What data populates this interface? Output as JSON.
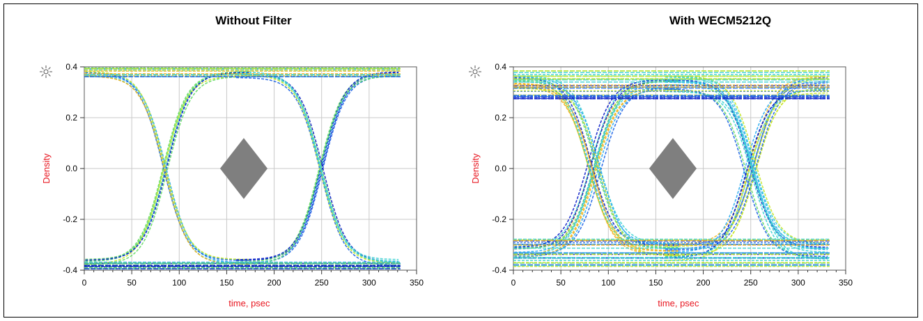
{
  "panels": [
    {
      "title": "Without Filter"
    },
    {
      "title": "With WECM5212Q"
    }
  ],
  "colors": {
    "axis_label": "#e8141e",
    "grid": "#c8c8c8",
    "mask": "#7f7f7f",
    "trace_palette": [
      "#0a1ec8",
      "#1e64e6",
      "#28aaf0",
      "#3cd2d2",
      "#64dc64",
      "#c8e628",
      "#f0b41e"
    ]
  },
  "chart_data": [
    {
      "type": "scatter",
      "title": "Without Filter",
      "xlabel": "time, psec",
      "ylabel": "Density",
      "xlim": [
        0,
        350
      ],
      "ylim": [
        -0.4,
        0.4
      ],
      "x_ticks": [
        "0",
        "50",
        "100",
        "150",
        "200",
        "250",
        "300",
        "350"
      ],
      "y_ticks": [
        "-0.4",
        "-0.2",
        "0.0",
        "0.2",
        "0.4"
      ],
      "grid": true,
      "eye_crossings_psec": [
        85,
        250
      ],
      "amplitude_levels": [
        -0.37,
        0.37
      ],
      "mask_diamond": {
        "center_x": 168,
        "center_y": 0.0,
        "half_width_psec": 25,
        "half_height": 0.12
      }
    },
    {
      "type": "scatter",
      "title": "With WECM5212Q",
      "xlabel": "time, psec",
      "ylabel": "Density",
      "xlim": [
        0,
        350
      ],
      "ylim": [
        -0.4,
        0.4
      ],
      "x_ticks": [
        "0",
        "50",
        "100",
        "150",
        "200",
        "250",
        "300",
        "350"
      ],
      "y_ticks": [
        "-0.4",
        "-0.2",
        "0.0",
        "0.2",
        "0.4"
      ],
      "grid": true,
      "eye_crossings_psec": [
        85,
        250
      ],
      "amplitude_levels": [
        -0.33,
        0.33
      ],
      "mask_diamond": {
        "center_x": 168,
        "center_y": 0.0,
        "half_width_psec": 25,
        "half_height": 0.12
      }
    }
  ]
}
